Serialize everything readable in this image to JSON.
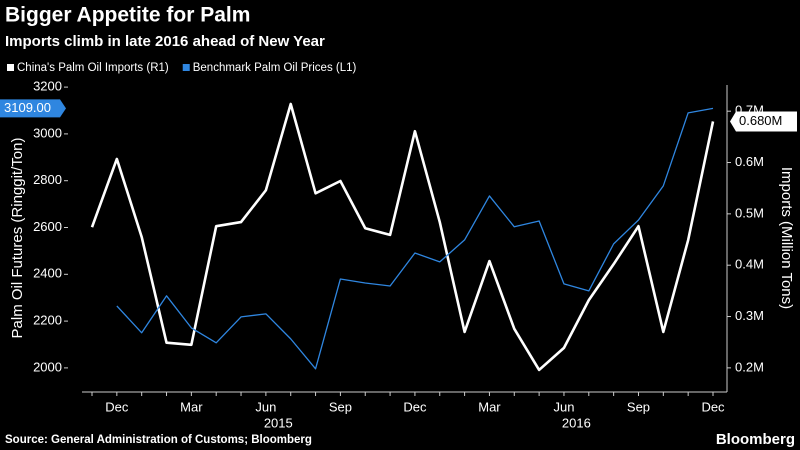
{
  "chart_data": {
    "type": "line",
    "title": "Bigger Appetite for Palm",
    "subtitle": "Imports climb in late 2016 ahead of New Year",
    "source": "Source: General Administration of Customs; Bloomberg",
    "brand": "Bloomberg",
    "ylabel": "Palm Oil Futures (Ringgit/Ton)",
    "y2label": "Imports (Million Tons)",
    "categories": [
      null,
      "Dec",
      null,
      null,
      "Mar",
      null,
      null,
      "Jun",
      null,
      null,
      "Sep",
      null,
      null,
      "Dec",
      null,
      null,
      "Mar",
      null,
      null,
      "Jun",
      null,
      null,
      "Sep",
      null,
      null,
      "Dec"
    ],
    "x_groups": [
      {
        "label": "2015",
        "start": 2,
        "end": 13
      },
      {
        "label": "2016",
        "start": 14,
        "end": 25
      }
    ],
    "series": [
      {
        "name": "China's Palm Oil Imports (R1)",
        "color": "#ffffff",
        "axis": "y2",
        "values": [
          0.474,
          0.607,
          0.455,
          0.249,
          0.245,
          0.476,
          0.484,
          0.546,
          0.714,
          0.54,
          0.564,
          0.472,
          0.459,
          0.661,
          0.484,
          0.27,
          0.408,
          0.276,
          0.196,
          0.239,
          0.332,
          0.402,
          0.476,
          0.27,
          0.449,
          0.68
        ],
        "value_labels": [
          null,
          null,
          null,
          null,
          null,
          null,
          null,
          null,
          null,
          null,
          null,
          null,
          null,
          null,
          null,
          null,
          null,
          null,
          null,
          null,
          null,
          null,
          null,
          null,
          null,
          "0.680M"
        ]
      },
      {
        "name": "Benchmark Palm Oil Prices (L1)",
        "color": "#2f86e0",
        "values": [
          null,
          2265,
          2150,
          2308,
          2171,
          2107,
          2218,
          2231,
          2124,
          1996,
          2380,
          2363,
          2350,
          2491,
          2453,
          2547,
          2735,
          2603,
          2628,
          2359,
          2329,
          2530,
          2632,
          2778,
          3090,
          3109
        ],
        "value_labels": [
          null,
          null,
          null,
          null,
          null,
          null,
          null,
          null,
          null,
          null,
          null,
          null,
          null,
          null,
          null,
          null,
          null,
          null,
          null,
          null,
          null,
          null,
          null,
          null,
          null,
          "3109.00"
        ]
      }
    ],
    "ylim": [
      1897,
      3209
    ],
    "yticks": [
      2000,
      2200,
      2400,
      2600,
      2800,
      3000,
      3200
    ],
    "y2lim": [
      0.153,
      0.751
    ],
    "y2ticks": [
      {
        "value": 0.2,
        "label": "0.2M"
      },
      {
        "value": 0.3,
        "label": "0.3M"
      },
      {
        "value": 0.4,
        "label": "0.4M"
      },
      {
        "value": 0.5,
        "label": "0.5M"
      },
      {
        "value": 0.6,
        "label": "0.6M"
      },
      {
        "value": 0.7,
        "label": "0.7M"
      }
    ],
    "grid": false
  }
}
